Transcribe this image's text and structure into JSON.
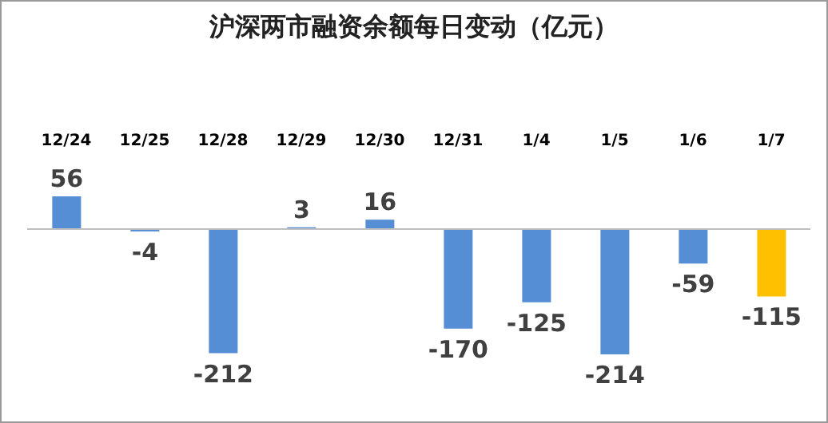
{
  "chart_data": {
    "type": "bar",
    "title": "沪深两市融资余额每日变动（亿元）",
    "categories": [
      "12/24",
      "12/25",
      "12/28",
      "12/29",
      "12/30",
      "12/31",
      "1/4",
      "1/5",
      "1/6",
      "1/7"
    ],
    "values": [
      56,
      -4,
      -212,
      3,
      16,
      -170,
      -125,
      -214,
      -59,
      -115
    ],
    "colors": [
      "#558ed5",
      "#558ed5",
      "#558ed5",
      "#558ed5",
      "#558ed5",
      "#558ed5",
      "#558ed5",
      "#558ed5",
      "#558ed5",
      "#ffc000"
    ],
    "data_labels": true,
    "grid": false,
    "legend": false
  }
}
